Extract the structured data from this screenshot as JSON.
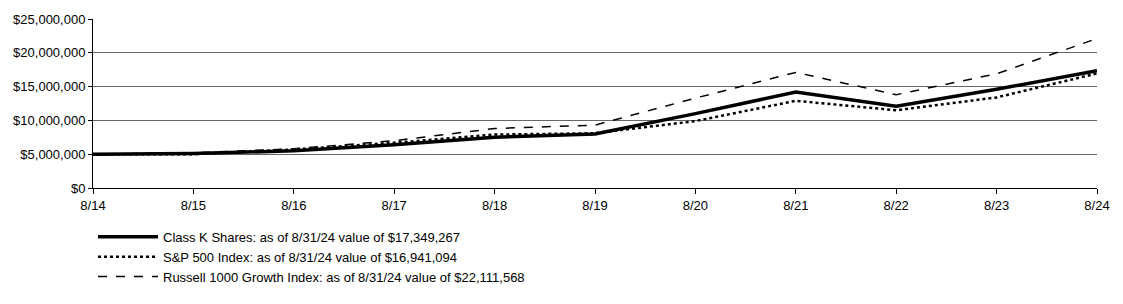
{
  "chart_data": {
    "type": "line",
    "x": [
      "8/14",
      "8/15",
      "8/16",
      "8/17",
      "8/18",
      "8/19",
      "8/20",
      "8/21",
      "8/22",
      "8/23",
      "8/24"
    ],
    "series": [
      {
        "name": "Class K Shares: as of 8/31/24 value of $17,349,267",
        "color": "#000000",
        "line_style": "solid",
        "values": [
          5000000,
          5100000,
          5500000,
          6400000,
          7500000,
          8000000,
          11000000,
          14200000,
          12100000,
          14600000,
          17349267
        ]
      },
      {
        "name": "S&P 500 Index: as of 8/31/24 value of $16,941,094",
        "color": "#000000",
        "line_style": "dot",
        "values": [
          5000000,
          5000000,
          5700000,
          6700000,
          7900000,
          8100000,
          9900000,
          12900000,
          11500000,
          13400000,
          16941094
        ]
      },
      {
        "name": "Russell 1000 Growth Index: as of 8/31/24 value of $22,111,568",
        "color": "#000000",
        "line_style": "dash",
        "values": [
          5000000,
          5200000,
          5800000,
          7000000,
          8800000,
          9300000,
          13300000,
          17100000,
          13800000,
          16900000,
          22111568
        ]
      }
    ],
    "ylim": [
      0,
      25000000
    ],
    "yticks": [
      {
        "value": 0,
        "label": "$0"
      },
      {
        "value": 5000000,
        "label": "$5,000,000"
      },
      {
        "value": 10000000,
        "label": "$10,000,000"
      },
      {
        "value": 15000000,
        "label": "$15,000,000"
      },
      {
        "value": 20000000,
        "label": "$20,000,000"
      },
      {
        "value": 25000000,
        "label": "$25,000,000"
      }
    ],
    "grid": true,
    "legend": "bottom-left"
  }
}
